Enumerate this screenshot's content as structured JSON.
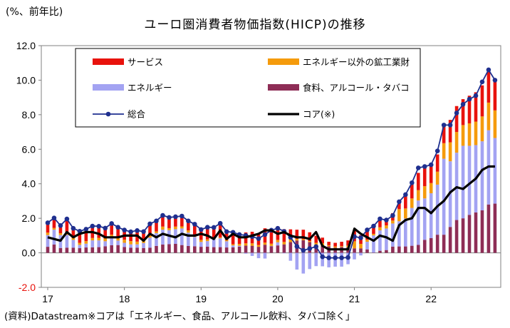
{
  "header": {
    "unit": "(%、前年比)",
    "title": "ユーロ圏消費者物価指数(HICP)の推移"
  },
  "footer": {
    "source": "(資料)Datastream※コアは「エネルギー、食品、アルコール飲料、タバコ除く」"
  },
  "colors": {
    "services": "#e8120c",
    "nonenergy_goods": "#f59b0c",
    "energy": "#a3a3f2",
    "food": "#8e2d56",
    "headline": "#1f2f8f",
    "core": "#000000"
  },
  "chart_data": {
    "type": "bar",
    "stacked": true,
    "title": "ユーロ圏消費者物価指数(HICP)の推移",
    "ylabel": "(%、前年比)",
    "ylim": [
      -2.0,
      12.0
    ],
    "yticks": [
      "12.0",
      "10.0",
      "8.0",
      "6.0",
      "4.0",
      "2.0",
      "0.0",
      "-2.0"
    ],
    "xtick_labels": [
      "17",
      "18",
      "19",
      "20",
      "21",
      "22"
    ],
    "legend_position": "top-inside",
    "grid": false,
    "months": [
      "2017-01",
      "2017-02",
      "2017-03",
      "2017-04",
      "2017-05",
      "2017-06",
      "2017-07",
      "2017-08",
      "2017-09",
      "2017-10",
      "2017-11",
      "2017-12",
      "2018-01",
      "2018-02",
      "2018-03",
      "2018-04",
      "2018-05",
      "2018-06",
      "2018-07",
      "2018-08",
      "2018-09",
      "2018-10",
      "2018-11",
      "2018-12",
      "2019-01",
      "2019-02",
      "2019-03",
      "2019-04",
      "2019-05",
      "2019-06",
      "2019-07",
      "2019-08",
      "2019-09",
      "2019-10",
      "2019-11",
      "2019-12",
      "2020-01",
      "2020-02",
      "2020-03",
      "2020-04",
      "2020-05",
      "2020-06",
      "2020-07",
      "2020-08",
      "2020-09",
      "2020-10",
      "2020-11",
      "2020-12",
      "2021-01",
      "2021-02",
      "2021-03",
      "2021-04",
      "2021-05",
      "2021-06",
      "2021-07",
      "2021-08",
      "2021-09",
      "2021-10",
      "2021-11",
      "2021-12",
      "2022-01",
      "2022-02",
      "2022-03",
      "2022-04",
      "2022-05",
      "2022-06",
      "2022-07",
      "2022-08",
      "2022-09",
      "2022-10",
      "2022-11"
    ],
    "series": [
      {
        "name": "サービス",
        "kind": "bar",
        "color": "#e8120c",
        "values": [
          0.57,
          0.58,
          0.44,
          0.81,
          0.56,
          0.67,
          0.69,
          0.69,
          0.67,
          0.6,
          0.65,
          0.63,
          0.56,
          0.54,
          0.64,
          0.52,
          0.68,
          0.61,
          0.65,
          0.62,
          0.57,
          0.6,
          0.55,
          0.6,
          0.6,
          0.62,
          0.58,
          0.81,
          0.45,
          0.69,
          0.54,
          0.63,
          0.67,
          0.68,
          0.83,
          0.85,
          0.77,
          0.74,
          0.59,
          0.53,
          0.55,
          0.51,
          0.41,
          0.32,
          0.2,
          0.21,
          0.25,
          0.3,
          0.65,
          0.5,
          0.56,
          0.46,
          0.47,
          0.31,
          0.43,
          0.46,
          0.71,
          0.91,
          1.0,
          1.24,
          1.0,
          1.0,
          1.05,
          1.3,
          1.5,
          1.5,
          1.6,
          1.7,
          1.8,
          1.9,
          1.85
        ]
      },
      {
        "name": "エネルギー以外の鉱工業財",
        "kind": "bar",
        "color": "#f59b0c",
        "values": [
          0.14,
          0.1,
          0.11,
          0.11,
          0.11,
          0.12,
          0.15,
          0.14,
          0.15,
          0.16,
          0.15,
          0.14,
          0.18,
          0.19,
          0.16,
          0.14,
          0.12,
          0.1,
          0.18,
          0.12,
          0.15,
          0.12,
          0.13,
          0.14,
          0.12,
          0.1,
          0.07,
          0.06,
          0.07,
          0.07,
          0.11,
          0.13,
          0.14,
          0.1,
          0.12,
          0.13,
          0.14,
          0.14,
          0.15,
          0.1,
          0.06,
          0.06,
          0.18,
          0.16,
          0.06,
          0.07,
          0.05,
          0.1,
          0.41,
          0.26,
          0.12,
          0.09,
          0.18,
          0.18,
          0.17,
          0.7,
          0.58,
          0.55,
          0.6,
          0.71,
          0.59,
          0.75,
          0.9,
          1.1,
          1.2,
          1.2,
          1.3,
          1.36,
          1.44,
          1.6,
          1.6
        ]
      },
      {
        "name": "エネルギー",
        "kind": "bar",
        "color": "#a3a3f2",
        "values": [
          0.68,
          0.86,
          0.75,
          0.74,
          0.45,
          0.19,
          0.22,
          0.4,
          0.39,
          0.29,
          0.46,
          0.26,
          0.24,
          0.19,
          0.19,
          0.29,
          0.58,
          0.74,
          0.86,
          0.81,
          0.85,
          0.96,
          0.77,
          0.54,
          0.28,
          0.32,
          0.49,
          0.51,
          0.36,
          0.11,
          0.05,
          -0.05,
          -0.18,
          -0.31,
          -0.33,
          0.01,
          0.18,
          -0.03,
          -0.46,
          -0.97,
          -1.2,
          -0.94,
          -0.77,
          -0.78,
          -0.84,
          -0.8,
          -0.8,
          -0.66,
          -0.38,
          -0.15,
          0.44,
          1.0,
          1.18,
          1.25,
          1.34,
          1.46,
          1.62,
          2.19,
          2.57,
          2.4,
          2.6,
          2.9,
          4.4,
          3.8,
          3.9,
          4.2,
          4.0,
          3.9,
          4.0,
          4.3,
          3.8
        ]
      },
      {
        "name": "食料、アルコール・タバコ",
        "kind": "bar",
        "color": "#8e2d56",
        "values": [
          0.35,
          0.48,
          0.28,
          0.3,
          0.3,
          0.27,
          0.31,
          0.32,
          0.33,
          0.38,
          0.44,
          0.45,
          0.34,
          0.3,
          0.3,
          0.28,
          0.3,
          0.4,
          0.48,
          0.5,
          0.52,
          0.45,
          0.4,
          0.38,
          0.35,
          0.36,
          0.33,
          0.33,
          0.31,
          0.32,
          0.36,
          0.42,
          0.41,
          0.35,
          0.47,
          0.39,
          0.43,
          0.49,
          0.62,
          0.71,
          0.73,
          0.62,
          0.4,
          0.4,
          0.38,
          0.3,
          0.34,
          0.32,
          0.26,
          0.26,
          0.2,
          0.01,
          0.12,
          0.16,
          0.36,
          0.37,
          0.37,
          0.41,
          0.46,
          0.75,
          0.85,
          1.05,
          1.05,
          1.5,
          1.9,
          2.0,
          2.2,
          2.34,
          2.46,
          2.8,
          2.85
        ]
      },
      {
        "name": "総合",
        "kind": "line-marker",
        "color": "#1f2f8f",
        "values": [
          1.74,
          2.02,
          1.58,
          1.96,
          1.42,
          1.25,
          1.37,
          1.55,
          1.54,
          1.43,
          1.7,
          1.48,
          1.32,
          1.22,
          1.29,
          1.23,
          1.68,
          1.85,
          2.17,
          2.05,
          2.09,
          2.13,
          1.85,
          1.66,
          1.35,
          1.48,
          1.47,
          1.71,
          1.23,
          1.19,
          1.06,
          1.01,
          0.94,
          0.82,
          1.06,
          1.31,
          1.42,
          1.24,
          0.9,
          0.37,
          0.14,
          0.25,
          0.36,
          -0.23,
          -0.29,
          -0.29,
          -0.29,
          -0.27,
          0.94,
          0.87,
          1.33,
          1.55,
          1.97,
          1.9,
          2.16,
          2.96,
          3.37,
          4.06,
          4.92,
          5.0,
          5.1,
          5.9,
          7.4,
          7.4,
          8.1,
          8.6,
          8.9,
          9.1,
          9.9,
          10.6,
          10.0
        ]
      },
      {
        "name": "コア(※)",
        "kind": "line",
        "color": "#000000",
        "values": [
          0.9,
          0.8,
          0.7,
          1.2,
          0.9,
          1.1,
          1.2,
          1.2,
          1.1,
          0.9,
          0.9,
          0.9,
          1.0,
          1.0,
          1.0,
          0.7,
          1.1,
          0.9,
          1.1,
          1.0,
          0.9,
          1.1,
          1.0,
          1.0,
          1.1,
          1.0,
          0.8,
          1.3,
          0.8,
          1.1,
          0.9,
          0.9,
          1.0,
          1.1,
          1.3,
          1.3,
          1.1,
          1.2,
          1.0,
          0.9,
          0.9,
          0.8,
          1.2,
          0.4,
          0.2,
          0.2,
          0.2,
          0.2,
          1.4,
          1.1,
          0.9,
          0.7,
          1.0,
          0.9,
          0.7,
          1.6,
          1.9,
          2.0,
          2.6,
          2.6,
          2.3,
          2.7,
          3.0,
          3.5,
          3.8,
          3.7,
          4.0,
          4.3,
          4.8,
          5.0,
          5.0
        ]
      }
    ],
    "legend": [
      {
        "label": "サービス",
        "swatch": "bar",
        "color": "#e8120c"
      },
      {
        "label": "エネルギー以外の鉱工業財",
        "swatch": "bar",
        "color": "#f59b0c"
      },
      {
        "label": "エネルギー",
        "swatch": "bar",
        "color": "#a3a3f2"
      },
      {
        "label": "食料、アルコール・タバコ",
        "swatch": "bar",
        "color": "#8e2d56"
      },
      {
        "label": "総合",
        "swatch": "line-marker",
        "color": "#1f2f8f"
      },
      {
        "label": "コア(※)",
        "swatch": "line",
        "color": "#000000"
      }
    ]
  }
}
